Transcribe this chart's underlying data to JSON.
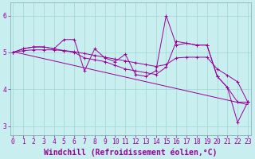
{
  "xlabel": "Windchill (Refroidissement éolien,°C)",
  "x_values": [
    0,
    1,
    2,
    3,
    4,
    5,
    6,
    7,
    8,
    9,
    10,
    11,
    12,
    13,
    14,
    15,
    16,
    17,
    18,
    19,
    20,
    21,
    22,
    23
  ],
  "line_volatile": [
    5.0,
    5.1,
    5.15,
    5.15,
    5.1,
    5.35,
    5.35,
    4.5,
    5.1,
    4.85,
    4.75,
    4.95,
    4.4,
    4.35,
    4.5,
    6.0,
    5.2,
    5.25,
    5.2,
    5.2,
    4.35,
    4.05,
    3.1,
    3.65
  ],
  "line_smooth": [
    5.0,
    5.1,
    5.15,
    5.15,
    5.1,
    5.05,
    5.0,
    4.85,
    4.8,
    4.75,
    4.65,
    4.55,
    4.5,
    4.45,
    4.4,
    4.6,
    5.3,
    5.25,
    5.2,
    5.2,
    4.35,
    4.05,
    3.65,
    3.65
  ],
  "line_sparse_x": [
    0,
    1,
    2,
    3,
    4,
    5,
    6,
    7,
    8,
    9,
    10,
    11,
    12,
    13,
    14,
    15,
    16,
    17,
    18,
    19,
    20,
    21,
    22,
    23
  ],
  "line_sparse_y": [
    5.0,
    5.05,
    5.07,
    5.07,
    5.07,
    5.05,
    5.02,
    4.97,
    4.92,
    4.87,
    4.82,
    4.77,
    4.72,
    4.67,
    4.62,
    4.67,
    4.85,
    4.87,
    4.87,
    4.87,
    4.55,
    4.38,
    4.2,
    3.65
  ],
  "line_trend_x": [
    0,
    23
  ],
  "line_trend_y": [
    5.02,
    3.58
  ],
  "line_color": "#990099",
  "bg_color": "#c8eef0",
  "grid_color": "#a0d8d0",
  "ylim_min": 2.75,
  "ylim_max": 6.35,
  "xlim_min": -0.3,
  "xlim_max": 23.3,
  "yticks": [
    3,
    4,
    5,
    6
  ],
  "xticks": [
    0,
    1,
    2,
    3,
    4,
    5,
    6,
    7,
    8,
    9,
    10,
    11,
    12,
    13,
    14,
    15,
    16,
    17,
    18,
    19,
    20,
    21,
    22,
    23
  ],
  "tick_fontsize": 5.8,
  "label_fontsize": 7.0
}
